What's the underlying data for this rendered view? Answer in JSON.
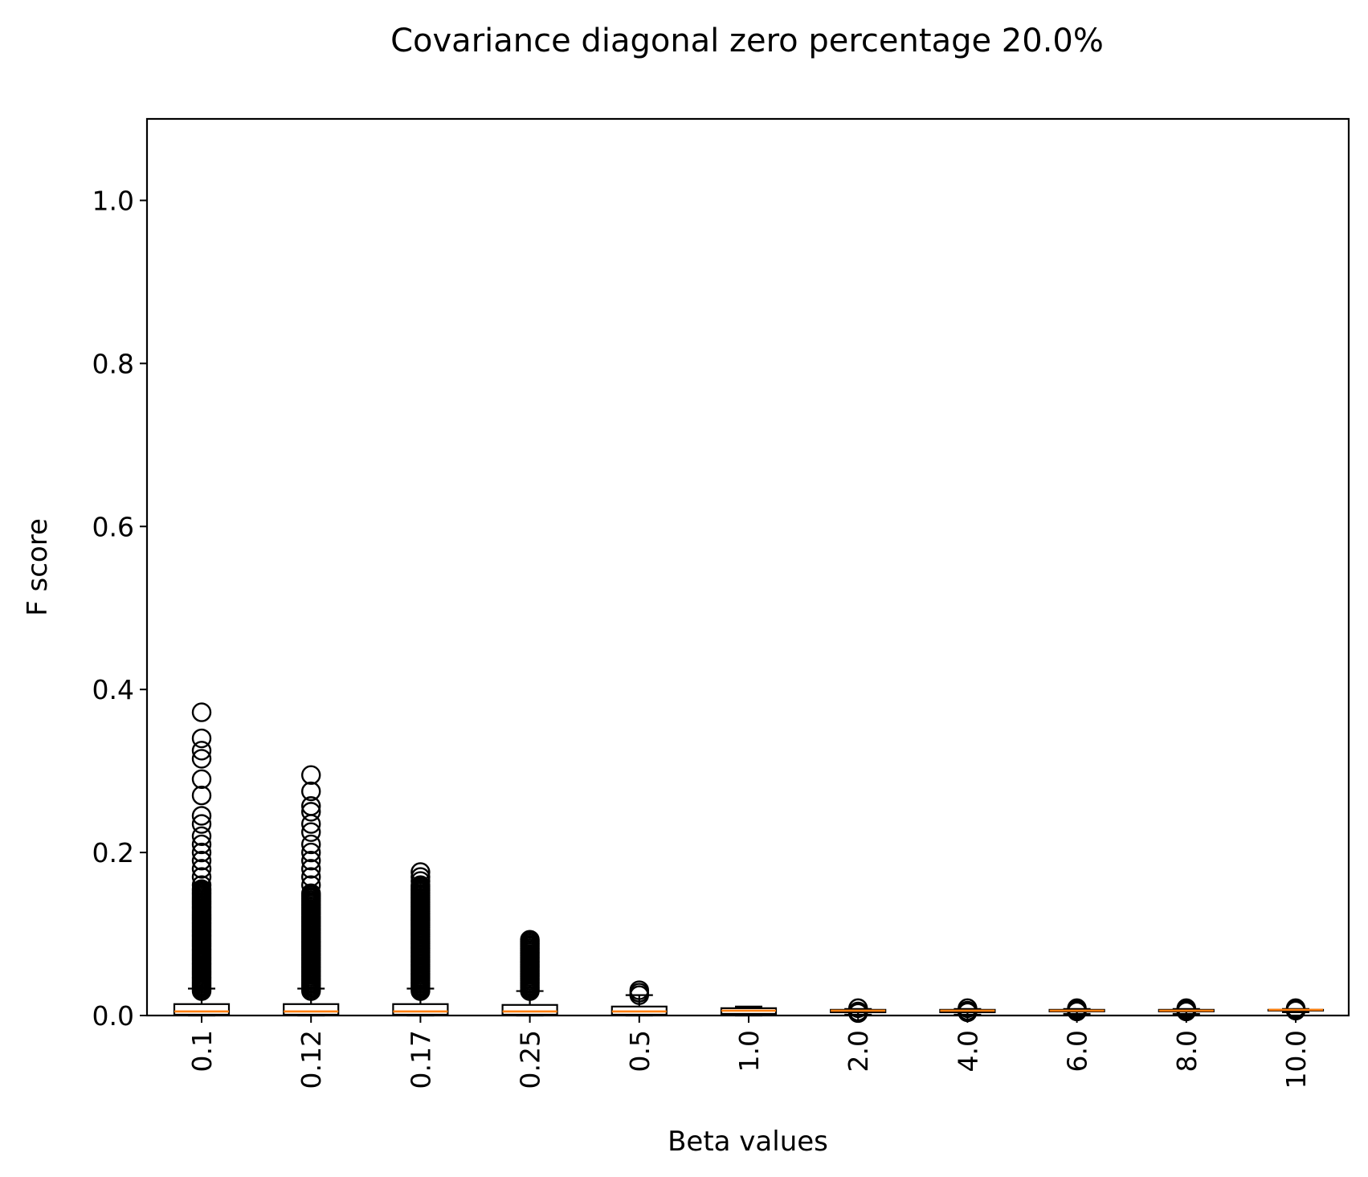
{
  "chart_data": {
    "type": "boxplot",
    "title": "Covariance diagonal zero percentage 20.0%",
    "xlabel": "Beta values",
    "ylabel": "F score",
    "ylim": [
      0.0,
      1.1
    ],
    "yticks": [
      "0.0",
      "0.2",
      "0.4",
      "0.6",
      "0.8",
      "1.0"
    ],
    "grid": false,
    "categories": [
      "0.1",
      "0.12",
      "0.17",
      "0.25",
      "0.5",
      "1.0",
      "2.0",
      "4.0",
      "6.0",
      "8.0",
      "10.0"
    ],
    "boxes": [
      {
        "whislo": 0.0,
        "q1": 0.001,
        "med": 0.005,
        "q3": 0.014,
        "whishi": 0.033,
        "fliers_range": [
          0.03,
          0.155
        ],
        "fliers_sparse": [
          0.16,
          0.17,
          0.18,
          0.19,
          0.2,
          0.21,
          0.22,
          0.235,
          0.245,
          0.27,
          0.29,
          0.315,
          0.325,
          0.34,
          0.372
        ]
      },
      {
        "whislo": 0.0,
        "q1": 0.001,
        "med": 0.005,
        "q3": 0.014,
        "whishi": 0.033,
        "fliers_range": [
          0.03,
          0.15
        ],
        "fliers_sparse": [
          0.16,
          0.17,
          0.18,
          0.19,
          0.2,
          0.21,
          0.225,
          0.235,
          0.25,
          0.257,
          0.275,
          0.295
        ]
      },
      {
        "whislo": 0.0,
        "q1": 0.001,
        "med": 0.005,
        "q3": 0.014,
        "whishi": 0.033,
        "fliers_range": [
          0.03,
          0.16
        ],
        "fliers_sparse": [
          0.165,
          0.17,
          0.176
        ]
      },
      {
        "whislo": 0.0,
        "q1": 0.001,
        "med": 0.005,
        "q3": 0.013,
        "whishi": 0.03,
        "fliers_range": [
          0.03,
          0.093
        ],
        "fliers_sparse": []
      },
      {
        "whislo": 0.0,
        "q1": 0.001,
        "med": 0.005,
        "q3": 0.011,
        "whishi": 0.025,
        "fliers_range": [],
        "fliers_sparse": [
          0.025,
          0.028,
          0.031
        ]
      },
      {
        "whislo": 0.0,
        "q1": 0.002,
        "med": 0.006,
        "q3": 0.009,
        "whishi": 0.011,
        "fliers_range": [],
        "fliers_sparse": []
      },
      {
        "whislo": 0.001,
        "q1": 0.004,
        "med": 0.006,
        "q3": 0.007,
        "whishi": 0.008,
        "fliers_range": [],
        "fliers_sparse": [
          0.003,
          0.005,
          0.009
        ]
      },
      {
        "whislo": 0.001,
        "q1": 0.004,
        "med": 0.006,
        "q3": 0.007,
        "whishi": 0.008,
        "fliers_range": [],
        "fliers_sparse": [
          0.004,
          0.006,
          0.009
        ]
      },
      {
        "whislo": 0.002,
        "q1": 0.005,
        "med": 0.006,
        "q3": 0.007,
        "whishi": 0.008,
        "fliers_range": [],
        "fliers_sparse": [
          0.005,
          0.007,
          0.009
        ]
      },
      {
        "whislo": 0.002,
        "q1": 0.005,
        "med": 0.006,
        "q3": 0.007,
        "whishi": 0.008,
        "fliers_range": [],
        "fliers_sparse": [
          0.005,
          0.007,
          0.009
        ]
      },
      {
        "whislo": 0.004,
        "q1": 0.006,
        "med": 0.007,
        "q3": 0.007,
        "whishi": 0.008,
        "fliers_range": [],
        "fliers_sparse": [
          0.006,
          0.008,
          0.009
        ]
      }
    ],
    "colors": {
      "box": "#000000",
      "median": "#ff7f0e",
      "flier": "#000000",
      "background": "#ffffff"
    }
  }
}
